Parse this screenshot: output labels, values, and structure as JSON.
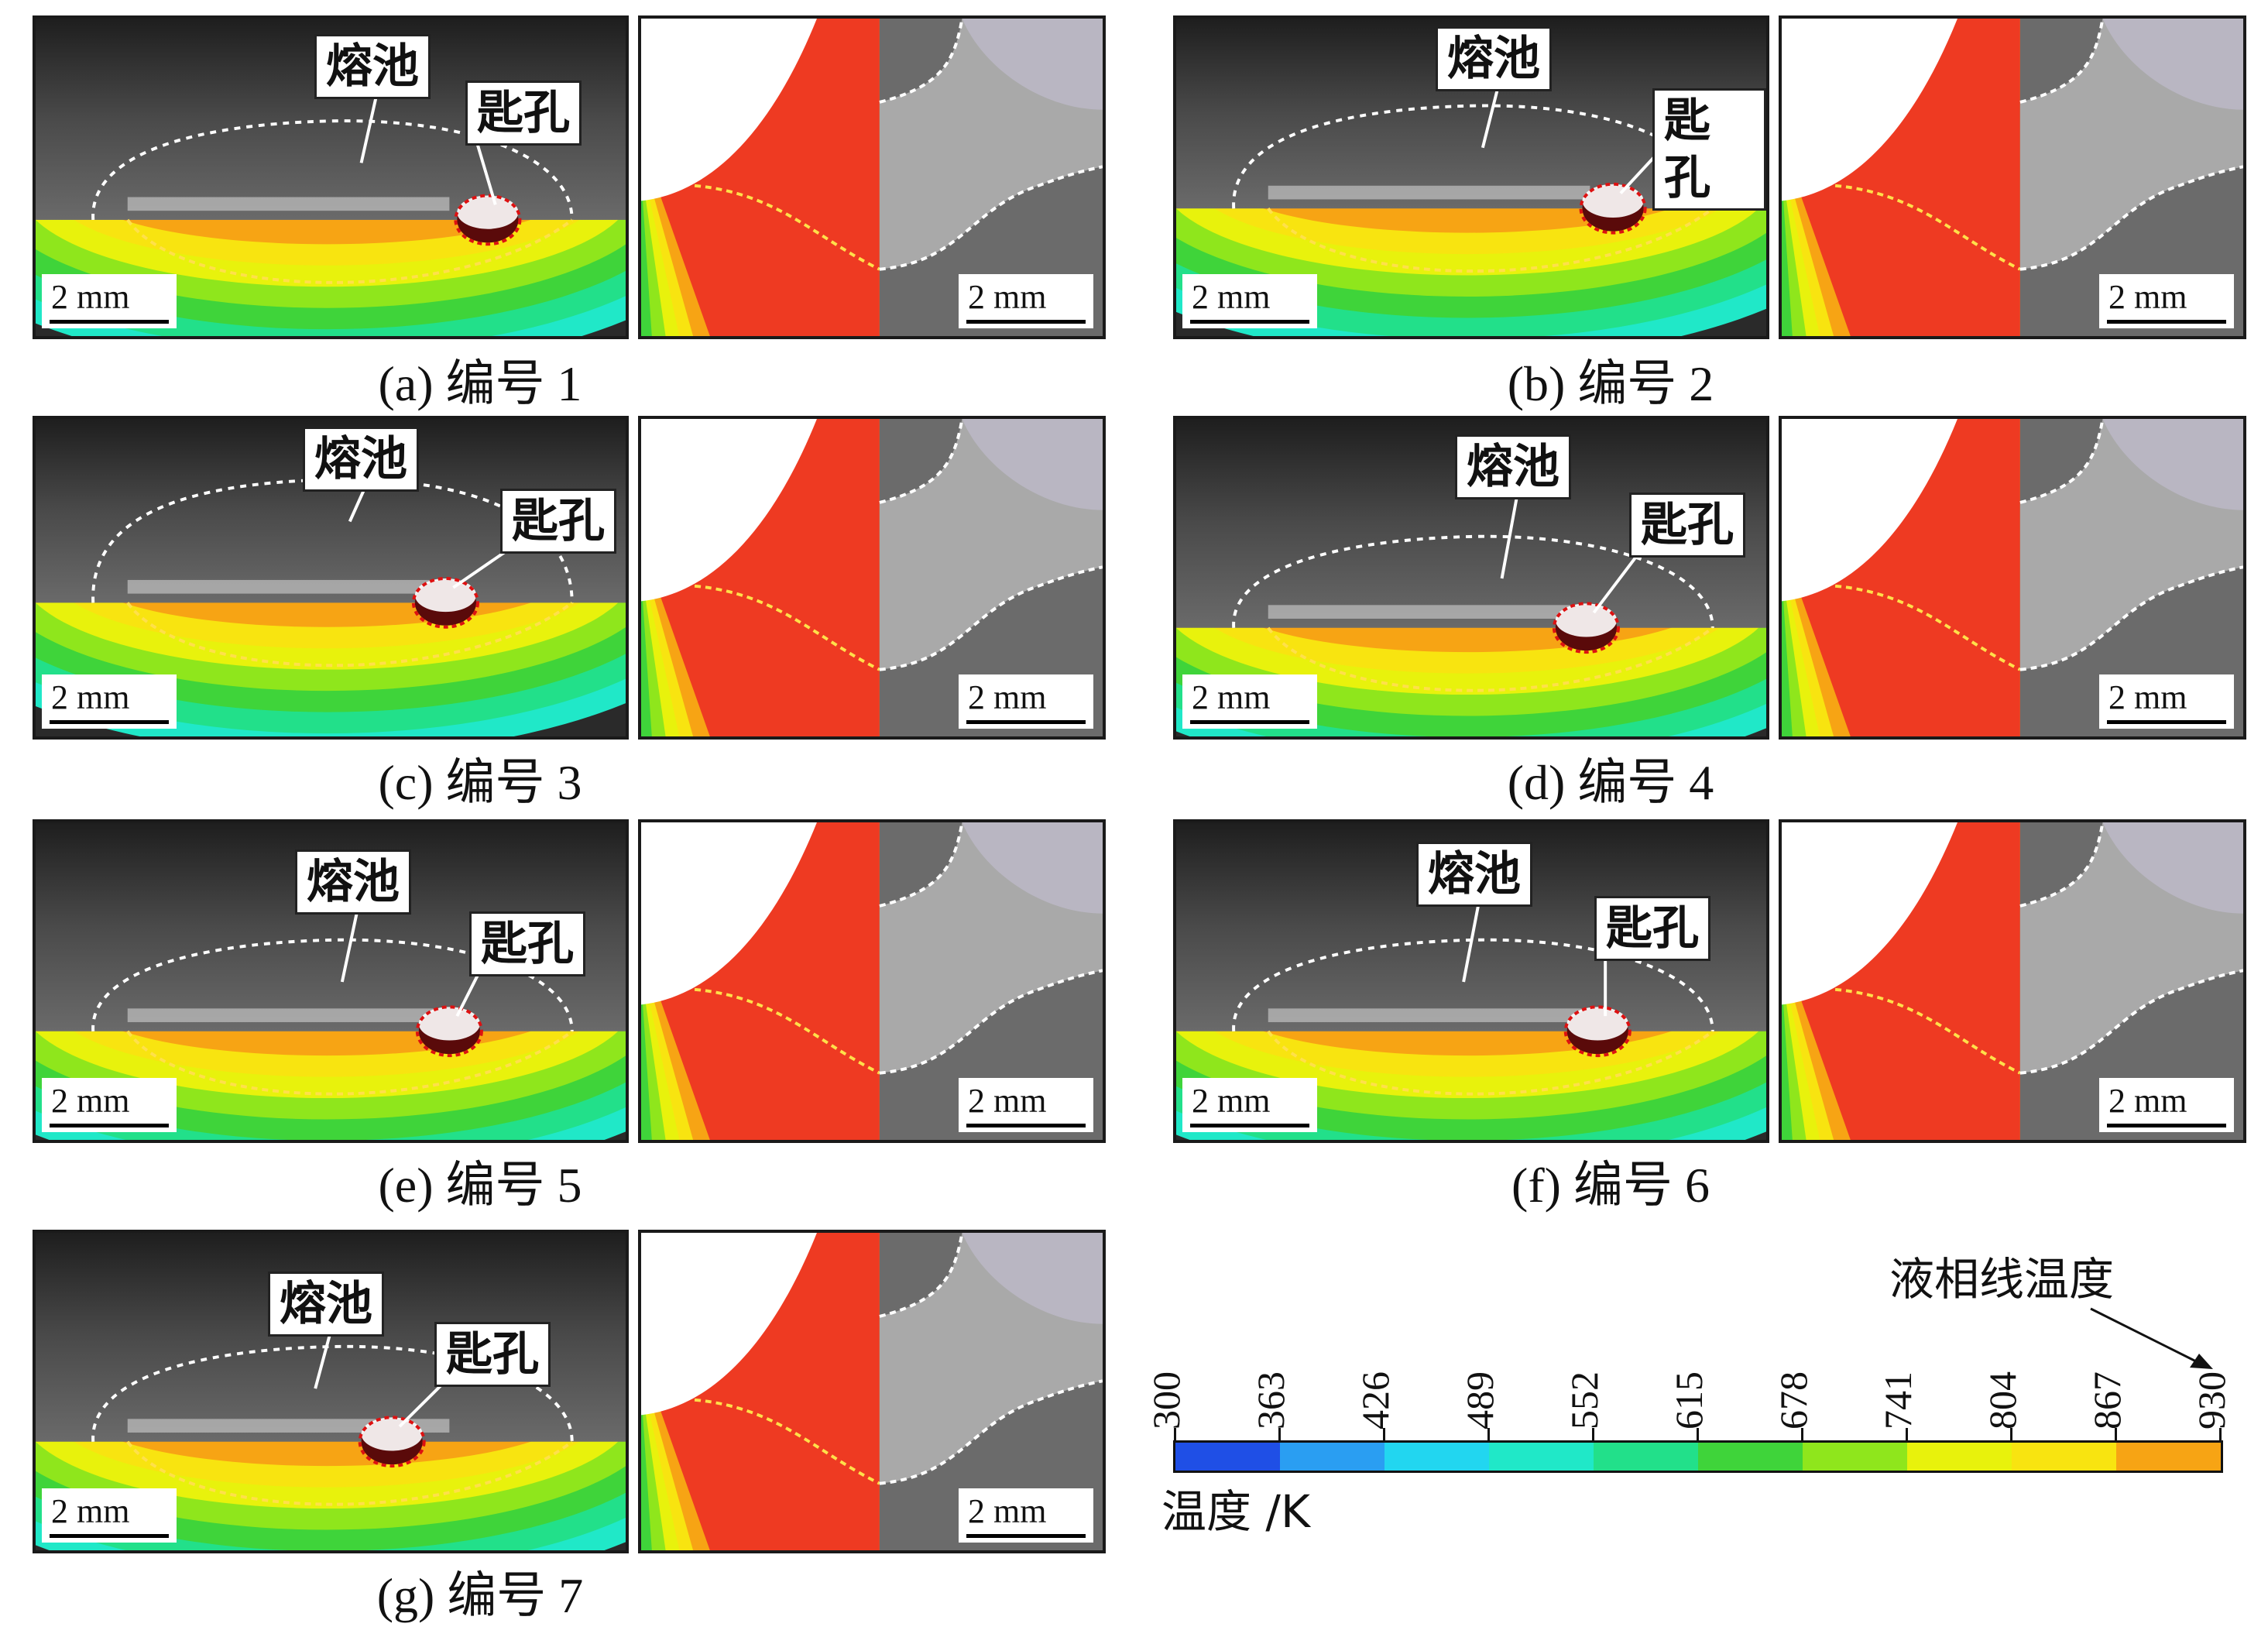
{
  "labels": {
    "pool": "熔池",
    "keyhole": "匙孔",
    "scale": "2 mm"
  },
  "panels": [
    {
      "id": "a",
      "caption": "(a) 编号 1"
    },
    {
      "id": "b",
      "caption": "(b) 编号 2"
    },
    {
      "id": "c",
      "caption": "(c) 编号 3"
    },
    {
      "id": "d",
      "caption": "(d) 编号 4"
    },
    {
      "id": "e",
      "caption": "(e) 编号 5"
    },
    {
      "id": "f",
      "caption": "(f) 编号 6"
    },
    {
      "id": "g",
      "caption": "(g) 编号 7"
    }
  ],
  "colorbar": {
    "title": "温度 /K",
    "annotation": "液相线温度",
    "ticks": [
      "300",
      "363",
      "426",
      "489",
      "552",
      "615",
      "678",
      "741",
      "804",
      "867",
      "930"
    ],
    "colors": [
      "#1f4fe6",
      "#2a9ef2",
      "#22d6f0",
      "#20e8c8",
      "#22e08a",
      "#3fd43a",
      "#8fe61c",
      "#e8f20c",
      "#f8e410",
      "#f7a414",
      "#ee3a22"
    ]
  }
}
